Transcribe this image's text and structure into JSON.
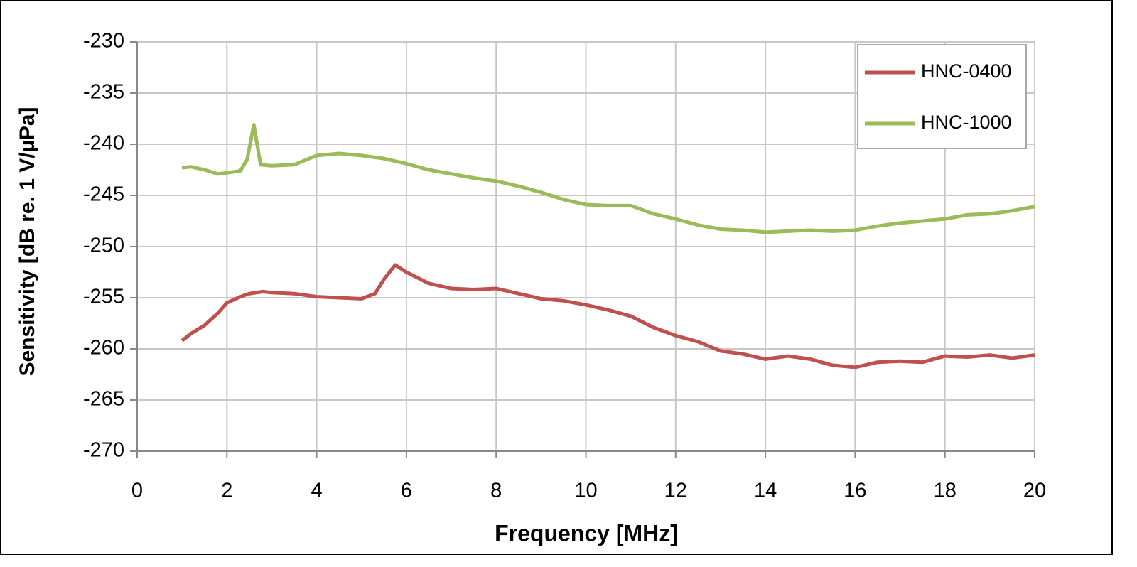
{
  "chart_data": {
    "type": "line",
    "xlabel": "Frequency [MHz]",
    "ylabel": "Sensitivity [dB re. 1 V/µPa]",
    "xlim": [
      0,
      20
    ],
    "xticks": [
      0,
      2,
      4,
      6,
      8,
      10,
      12,
      14,
      16,
      18,
      20
    ],
    "ylim": [
      -270,
      -230
    ],
    "yticks": [
      -270,
      -265,
      -260,
      -255,
      -250,
      -245,
      -240,
      -235,
      -230
    ],
    "grid": true,
    "legend": "top-right",
    "series": [
      {
        "name": "HNC-0400",
        "color": "#c0504d",
        "x": [
          1.0,
          1.2,
          1.5,
          1.8,
          2.0,
          2.3,
          2.5,
          2.8,
          3.0,
          3.5,
          4.0,
          4.5,
          5.0,
          5.3,
          5.5,
          5.75,
          6.0,
          6.5,
          7.0,
          7.5,
          8.0,
          8.5,
          9.0,
          9.5,
          10.0,
          10.5,
          11.0,
          11.5,
          12.0,
          12.5,
          13.0,
          13.5,
          14.0,
          14.5,
          15.0,
          15.5,
          16.0,
          16.5,
          17.0,
          17.5,
          18.0,
          18.5,
          19.0,
          19.5,
          20.0
        ],
        "values": [
          -259.2,
          -258.5,
          -257.7,
          -256.5,
          -255.5,
          -254.9,
          -254.6,
          -254.4,
          -254.5,
          -254.6,
          -254.9,
          -255.0,
          -255.1,
          -254.6,
          -253.2,
          -251.8,
          -252.5,
          -253.6,
          -254.1,
          -254.2,
          -254.1,
          -254.6,
          -255.1,
          -255.3,
          -255.7,
          -256.2,
          -256.8,
          -257.9,
          -258.7,
          -259.3,
          -260.2,
          -260.5,
          -261.0,
          -260.7,
          -261.0,
          -261.6,
          -261.8,
          -261.3,
          -261.2,
          -261.3,
          -260.7,
          -260.8,
          -260.6,
          -260.9,
          -260.6
        ]
      },
      {
        "name": "HNC-1000",
        "color": "#9bbb59",
        "x": [
          1.0,
          1.2,
          1.5,
          1.8,
          2.0,
          2.3,
          2.45,
          2.6,
          2.75,
          3.0,
          3.5,
          4.0,
          4.5,
          5.0,
          5.5,
          6.0,
          6.5,
          7.0,
          7.5,
          8.0,
          8.5,
          9.0,
          9.5,
          10.0,
          10.5,
          11.0,
          11.5,
          12.0,
          12.5,
          13.0,
          13.5,
          14.0,
          14.5,
          15.0,
          15.5,
          16.0,
          16.5,
          17.0,
          17.5,
          18.0,
          18.5,
          19.0,
          19.5,
          20.0
        ],
        "values": [
          -242.3,
          -242.2,
          -242.5,
          -242.9,
          -242.8,
          -242.6,
          -241.5,
          -238.1,
          -242.0,
          -242.1,
          -242.0,
          -241.1,
          -240.9,
          -241.1,
          -241.4,
          -241.9,
          -242.5,
          -242.9,
          -243.3,
          -243.6,
          -244.1,
          -244.7,
          -245.4,
          -245.9,
          -246.0,
          -246.0,
          -246.8,
          -247.3,
          -247.9,
          -248.3,
          -248.4,
          -248.6,
          -248.5,
          -248.4,
          -248.5,
          -248.4,
          -248.0,
          -247.7,
          -247.5,
          -247.3,
          -246.9,
          -246.8,
          -246.5,
          -246.1
        ]
      }
    ]
  }
}
